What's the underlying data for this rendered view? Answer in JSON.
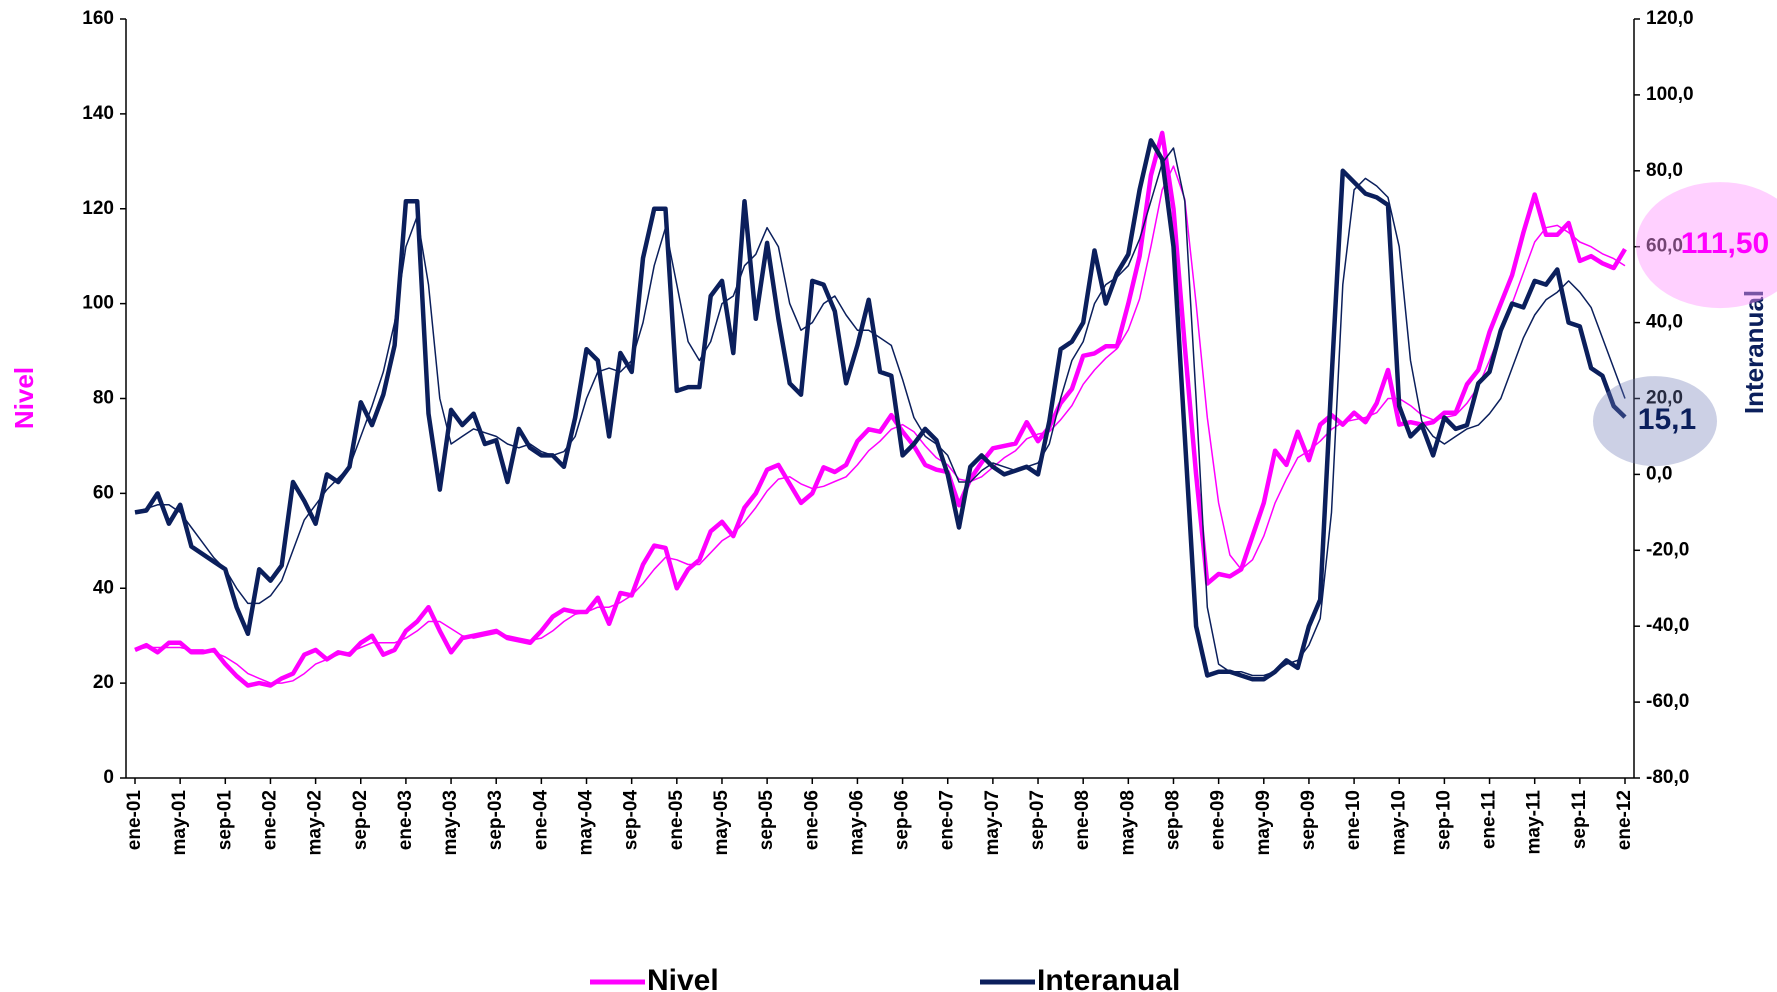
{
  "chart_data": {
    "type": "line",
    "y_label": "Nivel",
    "y2_label": "Interanual",
    "categories": [
      "ene-01",
      null,
      null,
      null,
      "may-01",
      null,
      null,
      null,
      "sep-01",
      null,
      null,
      null,
      "ene-02",
      null,
      null,
      null,
      "may-02",
      null,
      null,
      null,
      "sep-02",
      null,
      null,
      null,
      "ene-03",
      null,
      null,
      null,
      "may-03",
      null,
      null,
      null,
      "sep-03",
      null,
      null,
      null,
      "ene-04",
      null,
      null,
      null,
      "may-04",
      null,
      null,
      null,
      "sep-04",
      null,
      null,
      null,
      "ene-05",
      null,
      null,
      null,
      "may-05",
      null,
      null,
      null,
      "sep-05",
      null,
      null,
      null,
      "ene-06",
      null,
      null,
      null,
      "may-06",
      null,
      null,
      null,
      "sep-06",
      null,
      null,
      null,
      "ene-07",
      null,
      null,
      null,
      "may-07",
      null,
      null,
      null,
      "sep-07",
      null,
      null,
      null,
      "ene-08",
      null,
      null,
      null,
      "may-08",
      null,
      null,
      null,
      "sep-08",
      null,
      null,
      null,
      "ene-09",
      null,
      null,
      null,
      "may-09",
      null,
      null,
      null,
      "sep-09",
      null,
      null,
      null,
      "ene-10",
      null,
      null,
      null,
      "may-10",
      null,
      null,
      null,
      "sep-10",
      null,
      null,
      null,
      "ene-11",
      null,
      null,
      null,
      "may-11",
      null,
      null,
      null,
      "sep-11",
      null,
      null,
      null,
      "ene-12"
    ],
    "series": [
      {
        "color": "#ff00ff",
        "width": 1.5,
        "values": [
          27,
          27.5,
          27.5,
          27.5,
          27.5,
          27,
          27,
          26.5,
          25.5,
          24,
          22,
          21,
          20,
          20,
          20.5,
          22,
          24,
          25,
          26,
          26.5,
          27.5,
          28.5,
          28.5,
          28.5,
          29.5,
          31,
          33,
          33,
          31.5,
          30,
          29.5,
          30,
          30.5,
          30,
          29.5,
          29,
          29.5,
          31,
          33,
          34.5,
          35,
          36,
          36,
          37,
          38.5,
          41,
          44,
          46.5,
          46,
          45,
          45,
          47.5,
          50,
          51.5,
          54,
          57,
          60.5,
          63,
          63.5,
          62,
          61,
          61.5,
          62.5,
          63.5,
          66,
          69,
          71,
          73.5,
          74.5,
          73,
          70,
          67.5,
          66,
          63,
          62.5,
          63.5,
          65.5,
          67.5,
          69,
          71.5,
          72.5,
          73,
          75.5,
          78.5,
          83,
          86,
          88.5,
          90.5,
          94.5,
          101,
          112,
          124,
          129,
          122,
          100,
          76,
          58,
          47,
          44,
          46,
          51,
          58,
          63,
          67.5,
          69,
          71,
          73.5,
          75,
          75.5,
          76,
          77,
          80,
          80,
          78.5,
          76.5,
          75.5,
          76,
          76.5,
          79,
          82.5,
          88,
          94,
          100,
          106.5,
          113,
          116,
          116.5,
          115,
          113,
          112,
          110.5,
          109.5,
          108
        ]
      },
      {
        "name": "Nivel",
        "color": "#ff00ff",
        "width": 4.5,
        "values": [
          27,
          28,
          26.5,
          28.5,
          28.5,
          26.5,
          26.5,
          27,
          24,
          21.5,
          19.5,
          20,
          19.5,
          21,
          22,
          26,
          27,
          25,
          26.5,
          26,
          28.5,
          30,
          26,
          27,
          31,
          33,
          36,
          31,
          26.5,
          29.5,
          30,
          30.5,
          31,
          29.5,
          29,
          28.5,
          31,
          34,
          35.5,
          35,
          35,
          38,
          32.5,
          39,
          38.5,
          45,
          49,
          48.5,
          40,
          44,
          46,
          52,
          54,
          51,
          57,
          60,
          65,
          66,
          62,
          58,
          60,
          65.5,
          64.5,
          66,
          71,
          73.5,
          73,
          76.5,
          73,
          70,
          66,
          65,
          64.5,
          57.5,
          63,
          66.5,
          69.5,
          70,
          70.5,
          75,
          71,
          74,
          79,
          82,
          89,
          89.5,
          91,
          91,
          100,
          110,
          127,
          136,
          120,
          91,
          64,
          41,
          43,
          42.5,
          44,
          51,
          58,
          69,
          66,
          73,
          67,
          74.5,
          76.5,
          74.5,
          77,
          75,
          79,
          86,
          74.5,
          75,
          74.5,
          75,
          77,
          77,
          83,
          86,
          94,
          100,
          106,
          115,
          123,
          114.5,
          114.5,
          117,
          109,
          110,
          108.5,
          107.5,
          111.5
        ]
      },
      {
        "color": "#0b1f5c",
        "width": 1.5,
        "axis": "y2",
        "values": [
          -10,
          -9,
          -8,
          -8,
          -10,
          -14,
          -18,
          -22,
          -25,
          -30,
          -34,
          -34,
          -32,
          -28,
          -20,
          -12,
          -8,
          -4,
          -1,
          2,
          10,
          18,
          27,
          40,
          60,
          68,
          50,
          20,
          8,
          10,
          12,
          11,
          10,
          8,
          7,
          8,
          6,
          5,
          6,
          10,
          20,
          27,
          28,
          27,
          30,
          40,
          55,
          65,
          50,
          35,
          30,
          35,
          45,
          47,
          55,
          58,
          65,
          60,
          45,
          38,
          40,
          45,
          47,
          42,
          38,
          38,
          36,
          34,
          25,
          15,
          10,
          8,
          5,
          -2,
          -2,
          1,
          3,
          2,
          1,
          2,
          3,
          8,
          20,
          30,
          35,
          45,
          50,
          52,
          55,
          62,
          72,
          82,
          86,
          72,
          20,
          -35,
          -50,
          -52,
          -52,
          -53,
          -53,
          -52,
          -50,
          -49,
          -45,
          -38,
          -10,
          50,
          75,
          78,
          76,
          73,
          60,
          30,
          14,
          10,
          8,
          10,
          12,
          13,
          16,
          20,
          28,
          36,
          42,
          46,
          48,
          51,
          48,
          44,
          36,
          28,
          20
        ]
      },
      {
        "name": "Interanual",
        "color": "#0b1f5c",
        "width": 4.5,
        "axis": "y2",
        "values": [
          -10,
          -9.5,
          -5,
          -13,
          -8,
          -19,
          -21,
          -23,
          -25,
          -35,
          -42,
          -25,
          -28,
          -24,
          -2,
          -7,
          -13,
          0,
          -2,
          2,
          19,
          13,
          21,
          34,
          72,
          72,
          16,
          -4,
          17,
          13,
          16,
          8,
          9,
          -2,
          12,
          7,
          5,
          5,
          2,
          15,
          33,
          30,
          10,
          32,
          27,
          57,
          70,
          70,
          22,
          23,
          23,
          47,
          51,
          32,
          72,
          41,
          61,
          41,
          24,
          21,
          51,
          50,
          43,
          24,
          34,
          46,
          27,
          26,
          5,
          8,
          12,
          9,
          0,
          -14,
          2,
          5,
          2,
          0,
          1,
          2,
          0,
          14,
          33,
          35,
          40,
          59,
          45,
          53,
          58,
          75,
          88,
          83,
          60,
          10,
          -40,
          -53,
          -52,
          -52,
          -53,
          -54,
          -54,
          -52,
          -49,
          -51,
          -40,
          -33,
          25,
          80,
          77,
          74,
          73,
          71,
          18,
          10,
          13,
          5,
          15,
          12,
          13,
          24,
          27,
          38,
          45,
          44,
          51,
          50,
          54,
          40,
          39,
          28,
          26,
          18,
          15.1
        ]
      }
    ],
    "annotations": [
      {
        "text": "111,50",
        "series": 1
      },
      {
        "text": "15,1",
        "series": 3
      }
    ],
    "ylim": [
      0,
      160
    ],
    "yticks": [
      0,
      20,
      40,
      60,
      80,
      100,
      120,
      140,
      160
    ],
    "y2lim": [
      -80,
      120
    ],
    "y2ticks": [
      {
        "value": -80,
        "label": "-80,0"
      },
      {
        "value": -60,
        "label": "-60,0"
      },
      {
        "value": -40,
        "label": "-40,0"
      },
      {
        "value": -20,
        "label": "-20,0"
      },
      {
        "value": 0,
        "label": "0,0"
      },
      {
        "value": 20,
        "label": "20,0"
      },
      {
        "value": 40,
        "label": "40,0"
      },
      {
        "value": 60,
        "label": "60,0"
      },
      {
        "value": 80,
        "label": "80,0"
      },
      {
        "value": 100,
        "label": "100,0"
      },
      {
        "value": 120,
        "label": "120,0"
      }
    ],
    "legend": "bottom"
  }
}
